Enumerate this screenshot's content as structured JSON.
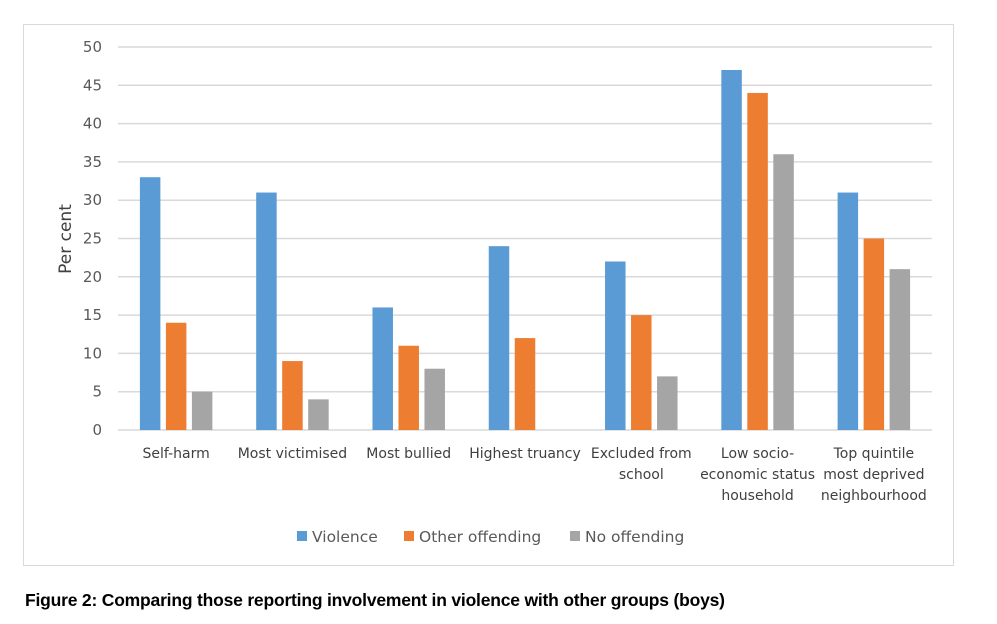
{
  "caption": "Figure 2: Comparing those reporting involvement in violence with other groups (boys)",
  "chart_data": {
    "type": "bar",
    "title": "",
    "xlabel": "",
    "ylabel": "Per cent",
    "ylim": [
      0,
      50
    ],
    "yticks": [
      0,
      5,
      10,
      15,
      20,
      25,
      30,
      35,
      40,
      45,
      50
    ],
    "grid": true,
    "legend_position": "bottom",
    "categories": [
      [
        "Self-harm"
      ],
      [
        "Most victimised"
      ],
      [
        "Most bullied"
      ],
      [
        "Highest truancy"
      ],
      [
        "Excluded from",
        "school"
      ],
      [
        "Low socio-",
        "economic status",
        "household"
      ],
      [
        "Top quintile",
        "most deprived",
        "neighbourhood"
      ]
    ],
    "series": [
      {
        "name": "Violence",
        "color": "#5b9bd5",
        "values": [
          33,
          31,
          16,
          24,
          22,
          47,
          31
        ]
      },
      {
        "name": "Other offending",
        "color": "#ed7d31",
        "values": [
          14,
          9,
          11,
          12,
          15,
          44,
          25
        ]
      },
      {
        "name": "No offending",
        "color": "#a5a5a5",
        "values": [
          5,
          4,
          8,
          null,
          7,
          36,
          21
        ]
      }
    ]
  }
}
